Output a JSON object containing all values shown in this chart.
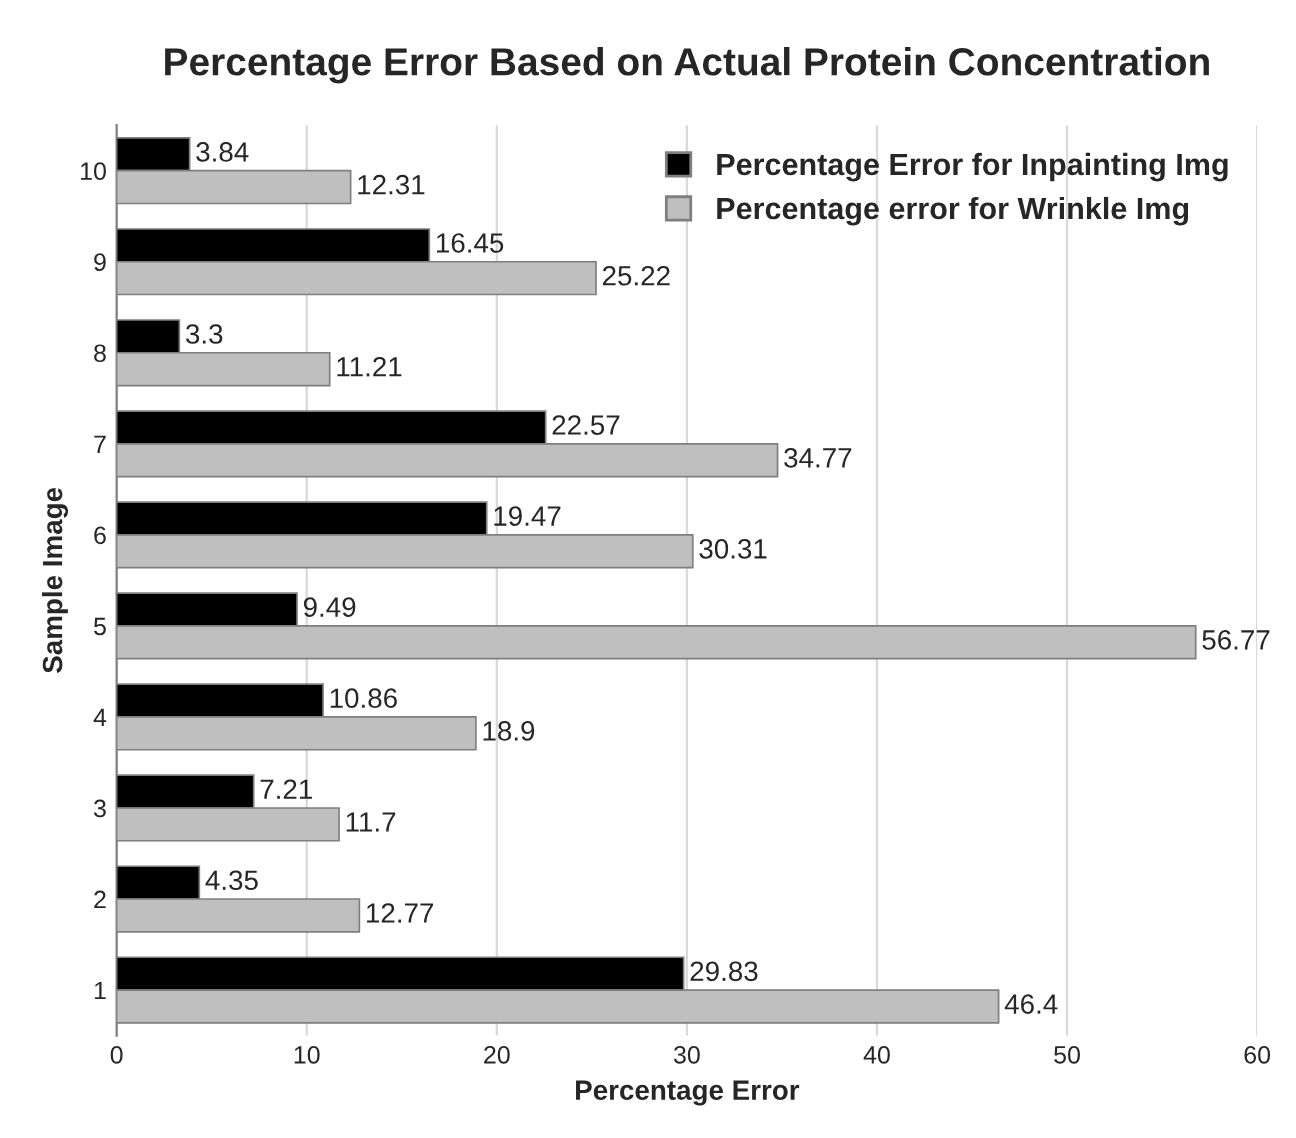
{
  "chart_data": {
    "type": "bar",
    "orientation": "horizontal",
    "title": "Percentage Error Based on Actual Protein Concentration",
    "xlabel": "Percentage Error",
    "ylabel": "Sample Image",
    "categories": [
      "10",
      "9",
      "8",
      "7",
      "6",
      "5",
      "4",
      "3",
      "2",
      "1"
    ],
    "series": [
      {
        "name": "Percentage Error for Inpainting Img",
        "color": "#000000",
        "values": [
          3.84,
          16.45,
          3.3,
          22.57,
          19.47,
          9.49,
          10.86,
          7.21,
          4.35,
          29.83
        ]
      },
      {
        "name": "Percentage error for Wrinkle Img",
        "color": "#bfbfbf",
        "values": [
          12.31,
          25.22,
          11.21,
          34.77,
          30.31,
          56.77,
          18.9,
          11.7,
          12.77,
          46.4
        ]
      }
    ],
    "xlim": [
      0,
      60
    ],
    "xticks": [
      0,
      10,
      20,
      30,
      40,
      50,
      60
    ],
    "grid": "x",
    "legend": "top right",
    "data_labels": true
  }
}
